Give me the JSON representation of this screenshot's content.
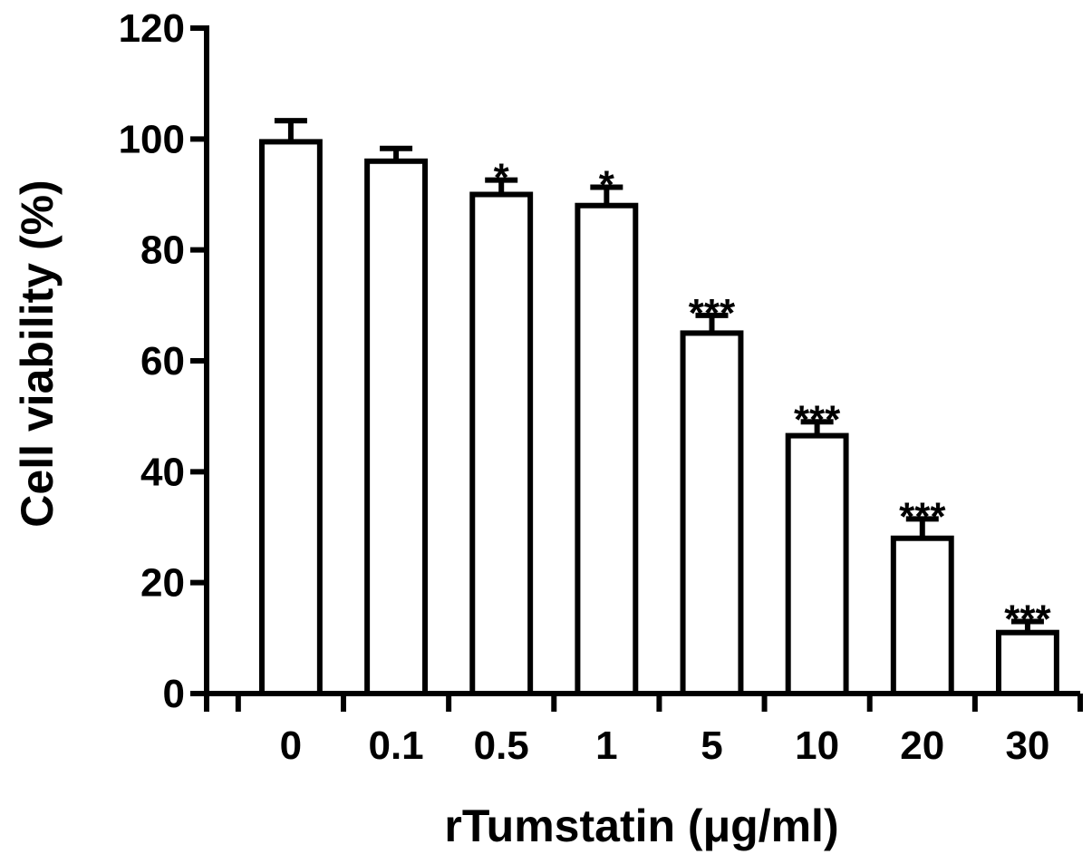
{
  "chart_data": {
    "type": "bar",
    "title": "",
    "xlabel": "rTumstatin (μg/ml)",
    "ylabel": "Cell  viability (%)",
    "ylim": [
      0,
      120
    ],
    "yticks": [
      0,
      20,
      40,
      60,
      80,
      100,
      120
    ],
    "categories": [
      "0",
      "0.1",
      "0.5",
      "1",
      "5",
      "10",
      "20",
      "30"
    ],
    "values": [
      99.5,
      96,
      90,
      88,
      65,
      46.5,
      28,
      11
    ],
    "errors": [
      3.8,
      2.3,
      2.6,
      3.3,
      3.2,
      2.5,
      3.5,
      2.0
    ],
    "significance": [
      "",
      "",
      "*",
      "*",
      "***",
      "***",
      "***",
      "***"
    ],
    "grid": false,
    "legend": "none"
  }
}
